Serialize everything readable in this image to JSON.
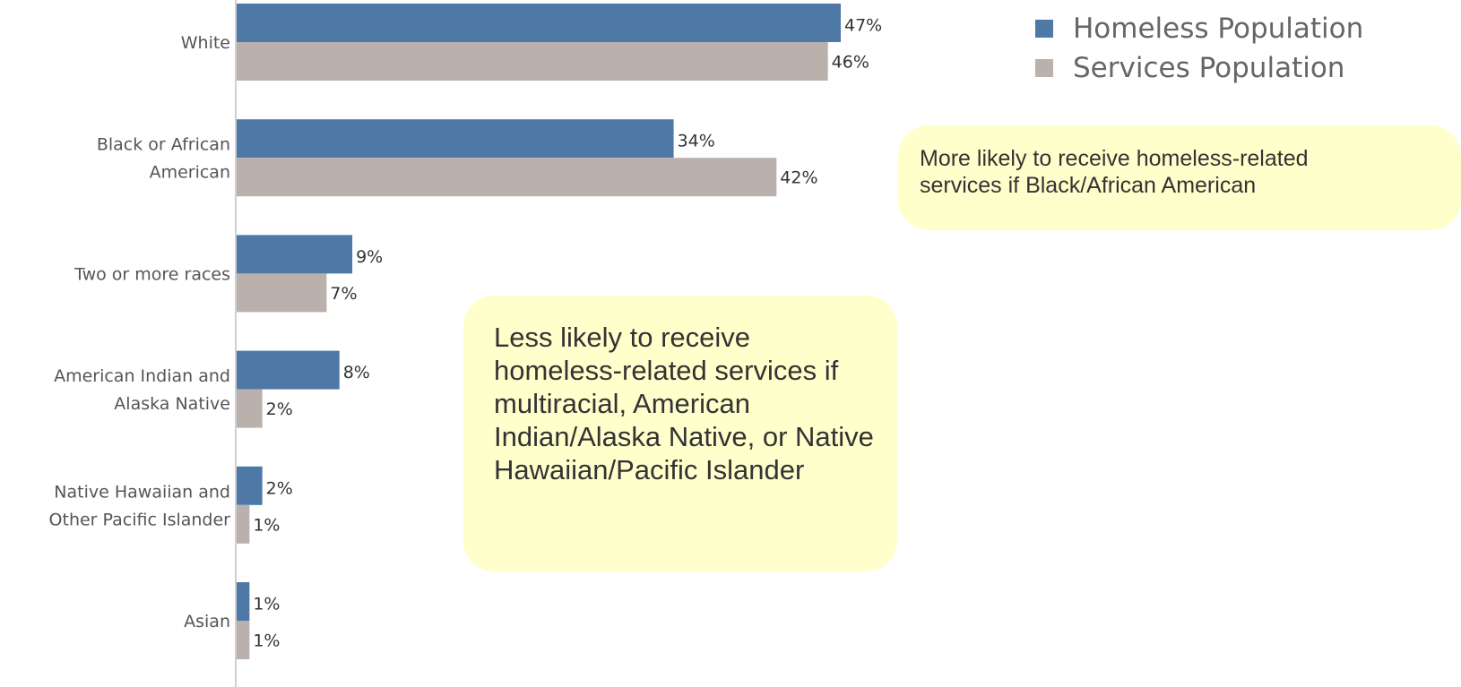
{
  "chart_data": {
    "type": "bar",
    "orientation": "horizontal",
    "categories": [
      [
        "White"
      ],
      [
        "Black or African",
        "American"
      ],
      [
        "Two or more races"
      ],
      [
        "American Indian and",
        "Alaska Native"
      ],
      [
        "Native Hawaiian and",
        "Other Pacific Islander"
      ],
      [
        "Asian"
      ]
    ],
    "series": [
      {
        "name": "Homeless Population",
        "color": "#4e79a7",
        "values": [
          47,
          34,
          9,
          8,
          2,
          1
        ],
        "labels": [
          "47%",
          "34%",
          "9%",
          "8%",
          "2%",
          "1%"
        ]
      },
      {
        "name": "Services Population",
        "color": "#bab0ac",
        "values": [
          46,
          42,
          7,
          2,
          1,
          1
        ],
        "labels": [
          "46%",
          "42%",
          "7%",
          "2%",
          "1%",
          "1%"
        ]
      }
    ],
    "xlim": [
      0,
      47
    ],
    "legend_position": "top-right",
    "grid": false
  },
  "annotations": {
    "black_note": "More likely to receive homeless-related\nservices if Black/African American",
    "multiracial_note": "Less likely to receive homeless-related services if multiracial, American Indian/Alaska Native, or Native Hawaiian/Pacific Islander"
  }
}
